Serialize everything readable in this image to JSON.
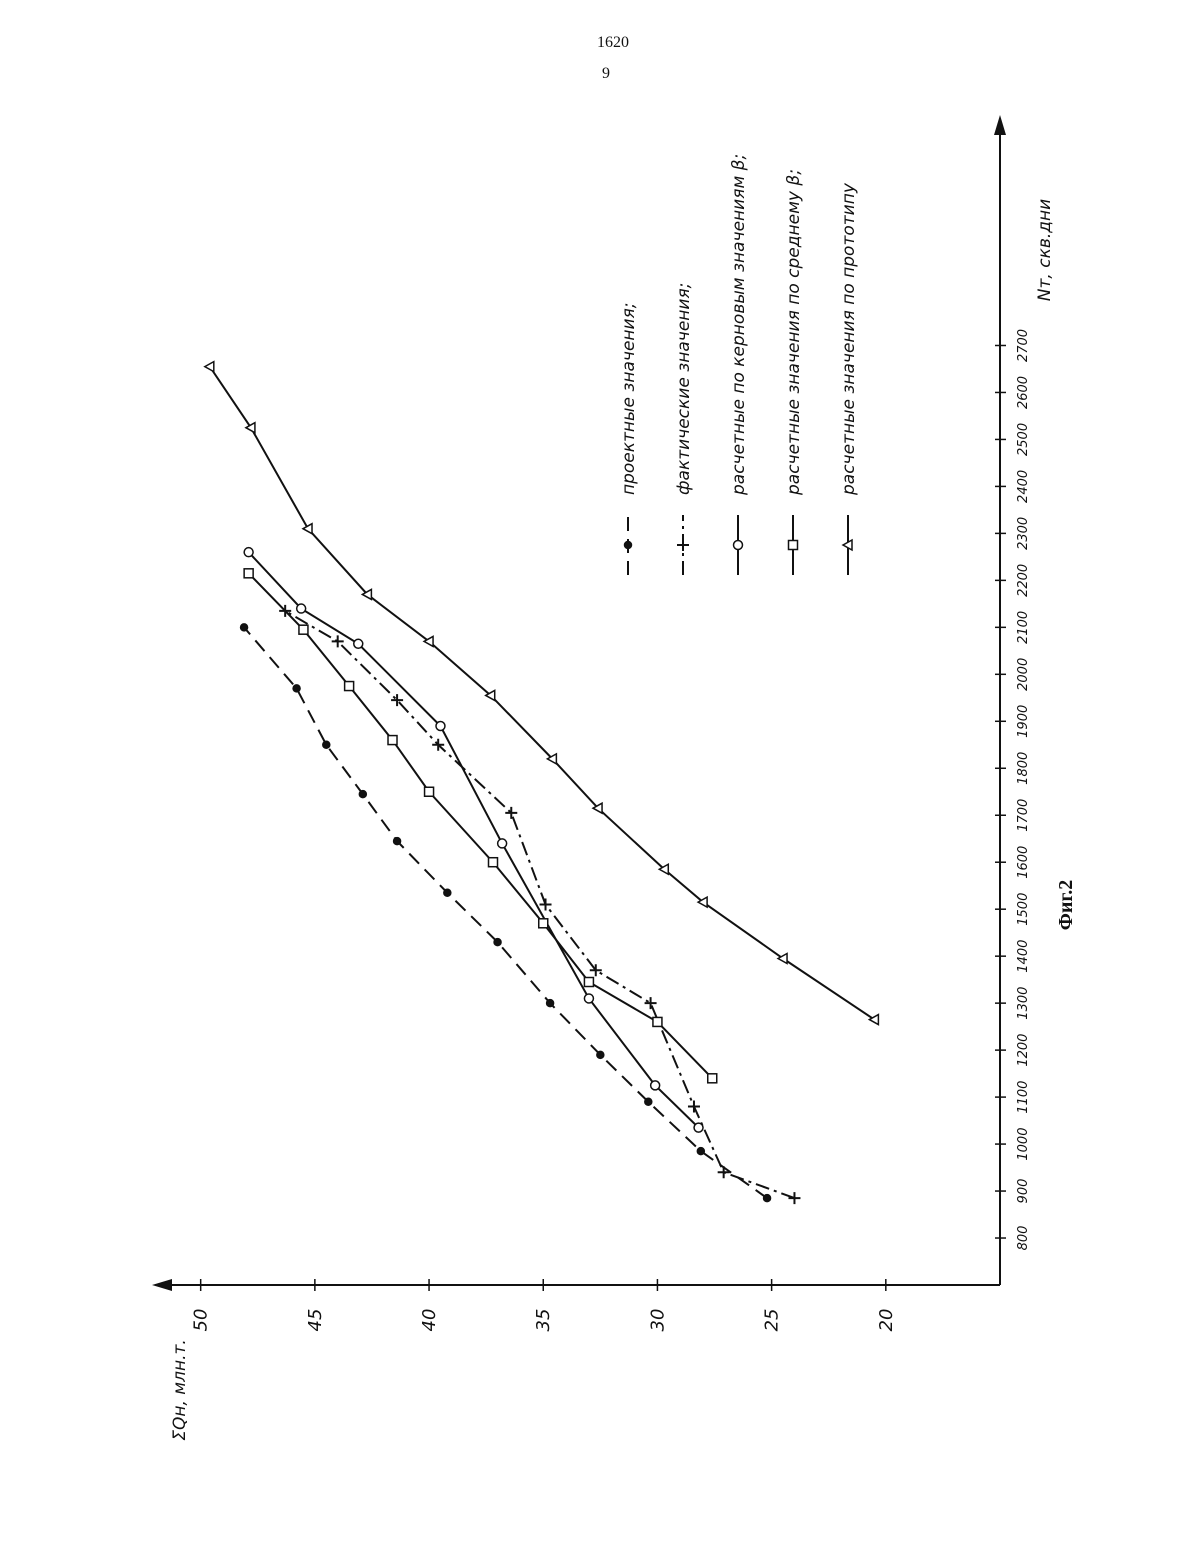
{
  "header": {
    "page_number": "1620",
    "column": "9"
  },
  "chart_data": {
    "type": "line",
    "caption": "Фиг.2",
    "x_label": "Nт, скв.дни",
    "y_label": "ΣQн, млн.т.",
    "xlim": [
      700,
      3180
    ],
    "ylim": [
      15,
      52
    ],
    "xticks": [
      800,
      900,
      1000,
      1100,
      1200,
      1300,
      1400,
      1500,
      1600,
      1700,
      1800,
      1900,
      2000,
      2100,
      2200,
      2300,
      2400,
      2500,
      2600,
      2700
    ],
    "yticks": [
      20,
      25,
      30,
      35,
      40,
      45,
      50
    ],
    "color": "#111111",
    "series": [
      {
        "name": "проектные значения;",
        "dash": "14 8",
        "marker": "dot",
        "x": [
          885,
          985,
          1090,
          1190,
          1300,
          1430,
          1535,
          1645,
          1745,
          1850,
          1970,
          2100
        ],
        "values": [
          25.2,
          28.1,
          30.4,
          32.5,
          34.7,
          37.0,
          39.2,
          41.4,
          42.9,
          44.5,
          45.8,
          48.1
        ]
      },
      {
        "name": "фактические значения;",
        "dash": "14 5 3 5",
        "marker": "cross",
        "x": [
          885,
          940,
          1080,
          1300,
          1370,
          1510,
          1705,
          1850,
          1945,
          2070,
          2135
        ],
        "values": [
          24.0,
          27.1,
          28.4,
          30.3,
          32.7,
          34.9,
          36.4,
          39.6,
          41.4,
          44.0,
          46.3
        ]
      },
      {
        "name": "расчетные по керновым значениям β;",
        "dash": "none",
        "marker": "circle",
        "x": [
          1035,
          1125,
          1310,
          1640,
          1890,
          2065,
          2140,
          2260
        ],
        "values": [
          28.2,
          30.1,
          33.0,
          36.8,
          39.5,
          43.1,
          45.6,
          47.9
        ]
      },
      {
        "name": "расчетные значения по среднему β;",
        "dash": "none",
        "marker": "square",
        "x": [
          1140,
          1260,
          1345,
          1470,
          1600,
          1750,
          1860,
          1975,
          2095,
          2215
        ],
        "values": [
          27.6,
          30.0,
          33.0,
          35.0,
          37.2,
          40.0,
          41.6,
          43.5,
          45.5,
          47.9
        ]
      },
      {
        "name": "расчетные значения по прототипу",
        "dash": "none",
        "marker": "triangle",
        "x": [
          1265,
          1395,
          1515,
          1585,
          1715,
          1820,
          1955,
          2070,
          2170,
          2310,
          2525,
          2655
        ],
        "values": [
          20.5,
          24.5,
          28.0,
          29.7,
          32.6,
          34.6,
          37.3,
          40.0,
          42.7,
          45.3,
          47.8,
          49.6
        ]
      }
    ]
  }
}
